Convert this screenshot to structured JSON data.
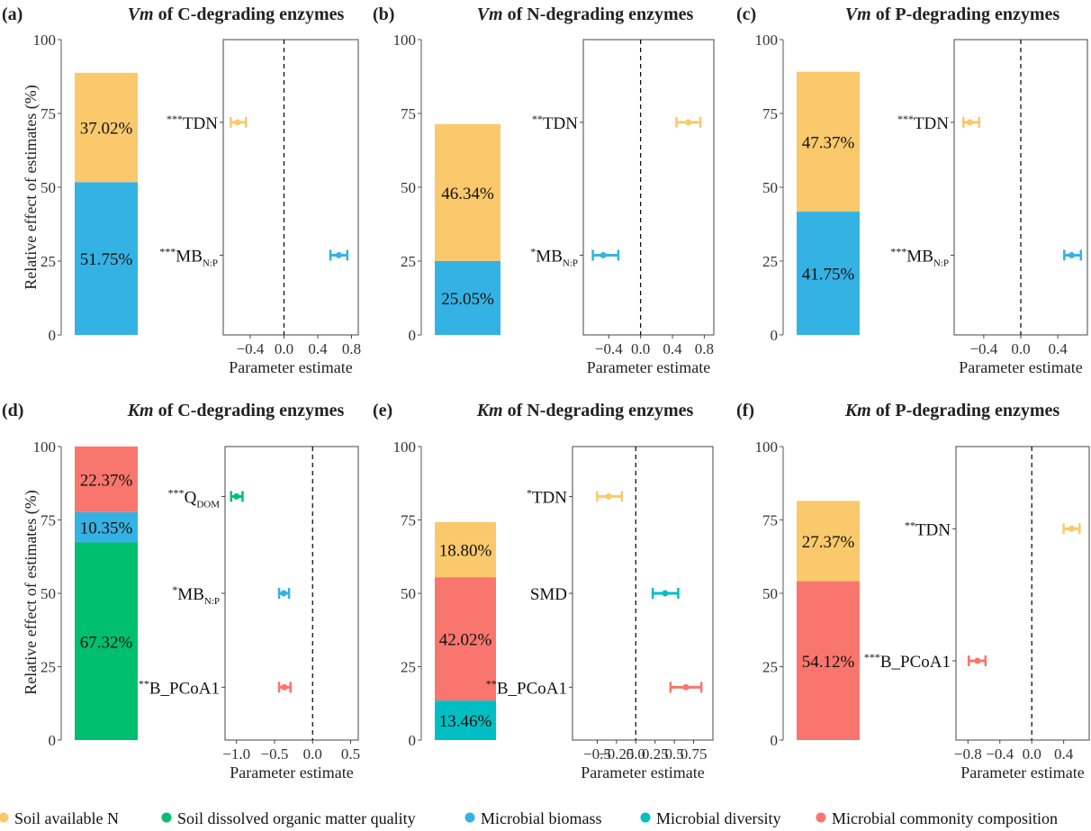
{
  "y_axis_label": "Relative effect of estimates (%)",
  "x_axis_label": "Parameter estimate",
  "legend": [
    {
      "key": "N",
      "label": "Soil available N",
      "color": "#F9C96C"
    },
    {
      "key": "DOM",
      "label": "Soil dissolved organic matter quality",
      "color": "#00BF6F"
    },
    {
      "key": "MB",
      "label": "Microbial biomass",
      "color": "#35B2E4"
    },
    {
      "key": "DIV",
      "label": "Microbial diversity",
      "color": "#00BFC4"
    },
    {
      "key": "COMP",
      "label": "Microbial commonity composition",
      "color": "#F8766D"
    }
  ],
  "chart_data": [
    {
      "panel": "(a)",
      "title_italic": "Vm",
      "title_rest": " of C-degrading enzymes",
      "type": "bar",
      "ylim": [
        0,
        100
      ],
      "yticks": [
        0,
        25,
        50,
        75,
        100
      ],
      "stack": [
        {
          "key": "MB",
          "value": 51.75,
          "label": "51.75%"
        },
        {
          "key": "N",
          "value": 37.02,
          "label": "37.02%"
        }
      ],
      "xlim": [
        -0.72,
        0.88
      ],
      "xticks": [
        -0.4,
        0,
        0.4,
        0.8
      ],
      "xtick_labels": [
        "−0.4",
        "0.0",
        "0.4",
        "0.8"
      ],
      "predictors": [
        {
          "stars": "***",
          "name": "TDN",
          "sub": "",
          "key": "N",
          "estimate": -0.55,
          "ci": [
            -0.63,
            -0.45
          ],
          "ypos": 72
        },
        {
          "stars": "***",
          "name": "MB",
          "sub": "N:P",
          "key": "MB",
          "estimate": 0.65,
          "ci": [
            0.55,
            0.75
          ],
          "ypos": 27
        }
      ]
    },
    {
      "panel": "(b)",
      "title_italic": "Vm",
      "title_rest": " of N-degrading enzymes",
      "type": "bar",
      "ylim": [
        0,
        100
      ],
      "yticks": [
        0,
        25,
        50,
        75,
        100
      ],
      "stack": [
        {
          "key": "MB",
          "value": 25.05,
          "label": "25.05%"
        },
        {
          "key": "N",
          "value": 46.34,
          "label": "46.34%"
        }
      ],
      "xlim": [
        -0.72,
        0.92
      ],
      "xticks": [
        -0.4,
        0,
        0.4,
        0.8
      ],
      "xtick_labels": [
        "−0.4",
        "0.0",
        "0.4",
        "0.8"
      ],
      "predictors": [
        {
          "stars": "**",
          "name": "TDN",
          "sub": "",
          "key": "N",
          "estimate": 0.6,
          "ci": [
            0.45,
            0.75
          ],
          "ypos": 72
        },
        {
          "stars": "*",
          "name": "MB",
          "sub": "N:P",
          "key": "MB",
          "estimate": -0.47,
          "ci": [
            -0.6,
            -0.28
          ],
          "ypos": 27
        }
      ]
    },
    {
      "panel": "(c)",
      "title_italic": "Vm",
      "title_rest": " of P-degrading enzymes",
      "type": "bar",
      "ylim": [
        0,
        100
      ],
      "yticks": [
        0,
        25,
        50,
        75,
        100
      ],
      "stack": [
        {
          "key": "MB",
          "value": 41.75,
          "label": "41.75%"
        },
        {
          "key": "N",
          "value": 47.37,
          "label": "47.37%"
        }
      ],
      "xlim": [
        -0.72,
        0.72
      ],
      "xticks": [
        -0.4,
        0,
        0.4
      ],
      "xtick_labels": [
        "−0.4",
        "0.0",
        "0.4"
      ],
      "predictors": [
        {
          "stars": "***",
          "name": "TDN",
          "sub": "",
          "key": "N",
          "estimate": -0.55,
          "ci": [
            -0.62,
            -0.45
          ],
          "ypos": 72
        },
        {
          "stars": "***",
          "name": "MB",
          "sub": "N:P",
          "key": "MB",
          "estimate": 0.55,
          "ci": [
            0.47,
            0.65
          ],
          "ypos": 27
        }
      ]
    },
    {
      "panel": "(d)",
      "title_italic": "Km",
      "title_rest": " of C-degrading enzymes",
      "type": "bar",
      "ylim": [
        0,
        100
      ],
      "yticks": [
        0,
        25,
        50,
        75,
        100
      ],
      "stack": [
        {
          "key": "DOM",
          "value": 67.32,
          "label": "67.32%"
        },
        {
          "key": "MB",
          "value": 10.35,
          "label": "10.35%"
        },
        {
          "key": "COMP",
          "value": 22.37,
          "label": "22.37%"
        }
      ],
      "xlim": [
        -1.15,
        0.6
      ],
      "xticks": [
        -1.0,
        -0.5,
        0,
        0.5
      ],
      "xtick_labels": [
        "−1.0",
        "−0.5",
        "0.0",
        "0.5"
      ],
      "predictors": [
        {
          "stars": "***",
          "name": "Q",
          "sub": "DOM",
          "key": "DOM",
          "estimate": -1.0,
          "ci": [
            -1.07,
            -0.92
          ],
          "ypos": 83
        },
        {
          "stars": "*",
          "name": "MB",
          "sub": "N:P",
          "key": "MB",
          "estimate": -0.38,
          "ci": [
            -0.44,
            -0.31
          ],
          "ypos": 50
        },
        {
          "stars": "**",
          "name": "B_PCoA1",
          "sub": "",
          "key": "COMP",
          "estimate": -0.37,
          "ci": [
            -0.44,
            -0.29
          ],
          "ypos": 18
        }
      ]
    },
    {
      "panel": "(e)",
      "title_italic": "Km",
      "title_rest": " of N-degrading enzymes",
      "type": "bar",
      "ylim": [
        0,
        100
      ],
      "yticks": [
        0,
        25,
        50,
        75,
        100
      ],
      "stack": [
        {
          "key": "DIV",
          "value": 13.46,
          "label": "13.46%"
        },
        {
          "key": "COMP",
          "value": 42.02,
          "label": "42.02%"
        },
        {
          "key": "N",
          "value": 18.8,
          "label": "18.80%"
        }
      ],
      "xlim": [
        -0.82,
        1.0
      ],
      "xticks": [
        -0.5,
        -0.25,
        0,
        0.25,
        0.5,
        0.75
      ],
      "xtick_labels": [
        "−0.5",
        "−0.25",
        "0.0",
        "0.25",
        "0.5",
        "0.75"
      ],
      "predictors": [
        {
          "stars": "*",
          "name": "TDN",
          "sub": "",
          "key": "N",
          "estimate": -0.35,
          "ci": [
            -0.5,
            -0.18
          ],
          "ypos": 83
        },
        {
          "stars": "",
          "name": "SMD",
          "sub": "",
          "key": "DIV",
          "estimate": 0.38,
          "ci": [
            0.22,
            0.55
          ],
          "ypos": 50
        },
        {
          "stars": "**",
          "name": "B_PCoA1",
          "sub": "",
          "key": "COMP",
          "estimate": 0.65,
          "ci": [
            0.45,
            0.85
          ],
          "ypos": 18
        }
      ]
    },
    {
      "panel": "(f)",
      "title_italic": "Km",
      "title_rest": " of P-degrading enzymes",
      "type": "bar",
      "ylim": [
        0,
        100
      ],
      "yticks": [
        0,
        25,
        50,
        75,
        100
      ],
      "stack": [
        {
          "key": "COMP",
          "value": 54.12,
          "label": "54.12%"
        },
        {
          "key": "N",
          "value": 27.37,
          "label": "27.37%"
        }
      ],
      "xlim": [
        -0.95,
        0.72
      ],
      "xticks": [
        -0.8,
        -0.4,
        0,
        0.4
      ],
      "xtick_labels": [
        "−0.8",
        "−0.4",
        "0.0",
        "0.4"
      ],
      "predictors": [
        {
          "stars": "**",
          "name": "TDN",
          "sub": "",
          "key": "N",
          "estimate": 0.5,
          "ci": [
            0.4,
            0.6
          ],
          "ypos": 72
        },
        {
          "stars": "***",
          "name": "B_PCoA1",
          "sub": "",
          "key": "COMP",
          "estimate": -0.68,
          "ci": [
            -0.79,
            -0.58
          ],
          "ypos": 27
        }
      ]
    }
  ]
}
